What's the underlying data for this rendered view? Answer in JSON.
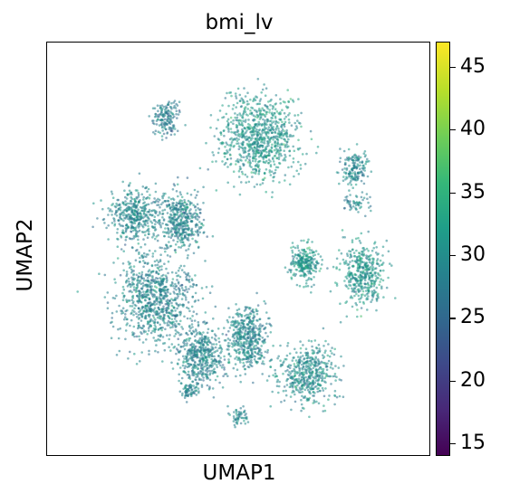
{
  "chart_data": {
    "type": "scatter",
    "title": "bmi_lv",
    "xlabel": "UMAP1",
    "ylabel": "UMAP2",
    "x_ticks": [],
    "y_ticks": [],
    "grid": false,
    "colorbar": {
      "colormap": "viridis",
      "range": [
        14,
        47
      ],
      "ticks": [
        {
          "value": 15,
          "label": "15"
        },
        {
          "value": 20,
          "label": "20"
        },
        {
          "value": 25,
          "label": "25"
        },
        {
          "value": 30,
          "label": "30"
        },
        {
          "value": 35,
          "label": "35"
        },
        {
          "value": 40,
          "label": "40"
        },
        {
          "value": 45,
          "label": "45"
        }
      ]
    },
    "dominant_value": 29,
    "clusters": [
      {
        "x": 0.28,
        "y": 0.62,
        "spread_x": 0.09,
        "spread_y": 0.1,
        "value": 29,
        "weight": 1.6
      },
      {
        "x": 0.4,
        "y": 0.76,
        "spread_x": 0.05,
        "spread_y": 0.07,
        "value": 29,
        "weight": 0.9
      },
      {
        "x": 0.52,
        "y": 0.71,
        "spread_x": 0.05,
        "spread_y": 0.07,
        "value": 29,
        "weight": 0.9
      },
      {
        "x": 0.23,
        "y": 0.42,
        "spread_x": 0.06,
        "spread_y": 0.06,
        "value": 29,
        "weight": 0.8
      },
      {
        "x": 0.35,
        "y": 0.43,
        "spread_x": 0.05,
        "spread_y": 0.06,
        "value": 29,
        "weight": 0.8
      },
      {
        "x": 0.55,
        "y": 0.23,
        "spread_x": 0.09,
        "spread_y": 0.09,
        "value": 31,
        "weight": 1.6
      },
      {
        "x": 0.68,
        "y": 0.8,
        "spread_x": 0.07,
        "spread_y": 0.06,
        "value": 30,
        "weight": 0.9
      },
      {
        "x": 0.67,
        "y": 0.53,
        "spread_x": 0.03,
        "spread_y": 0.04,
        "value": 31,
        "weight": 0.5
      },
      {
        "x": 0.82,
        "y": 0.56,
        "spread_x": 0.05,
        "spread_y": 0.07,
        "value": 31,
        "weight": 0.8
      },
      {
        "x": 0.31,
        "y": 0.18,
        "spread_x": 0.03,
        "spread_y": 0.04,
        "value": 28,
        "weight": 0.3
      },
      {
        "x": 0.8,
        "y": 0.3,
        "spread_x": 0.03,
        "spread_y": 0.04,
        "value": 29,
        "weight": 0.3
      },
      {
        "x": 0.37,
        "y": 0.84,
        "spread_x": 0.02,
        "spread_y": 0.02,
        "value": 29,
        "weight": 0.1
      },
      {
        "x": 0.5,
        "y": 0.9,
        "spread_x": 0.02,
        "spread_y": 0.02,
        "value": 29,
        "weight": 0.1
      },
      {
        "x": 0.8,
        "y": 0.39,
        "spread_x": 0.03,
        "spread_y": 0.02,
        "value": 29,
        "weight": 0.1
      }
    ]
  }
}
